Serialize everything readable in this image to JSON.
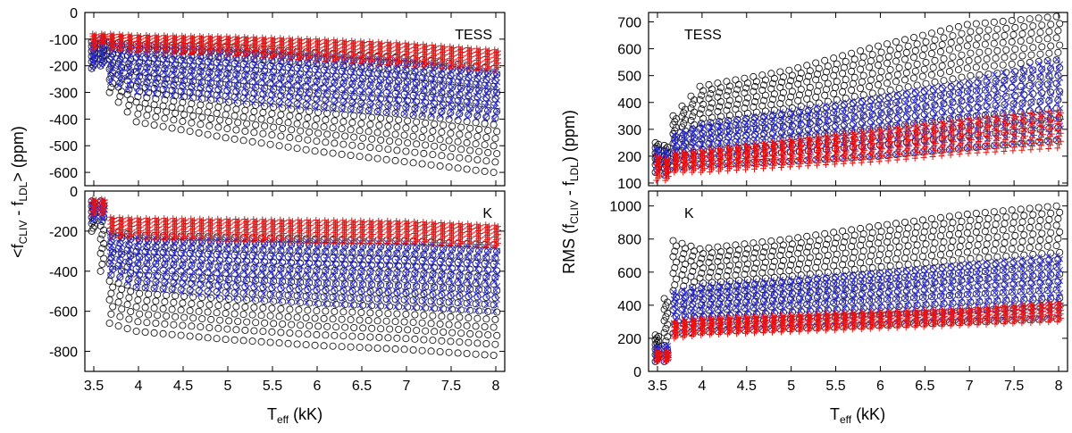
{
  "figure": {
    "left_ylabel": "<fCLIV - fLDL> (ppm)",
    "right_ylabel": "RMS (fCLIV - fLDL) (ppm)",
    "xlabel": "Teff (kK)"
  },
  "colors": {
    "black_series": "#000000",
    "blue_series": "#2b2bd8",
    "red_series": "#e81010"
  },
  "chart_data": [
    {
      "type": "scatter",
      "id": "left-top",
      "panel_label": "TESS",
      "x_range": [
        3.5,
        8.0
      ],
      "x_step_kK": 0.1,
      "xlim": [
        3.4,
        8.1
      ],
      "ylim": [
        -650,
        0
      ],
      "xticks": [
        3.5,
        4,
        4.5,
        5,
        5.5,
        6,
        6.5,
        7,
        7.5,
        8
      ],
      "xtick_labels": [
        "3.5",
        "4",
        "4.5",
        "5",
        "5.5",
        "6",
        "6.5",
        "7",
        "7.5",
        "8"
      ],
      "yticks": [
        0,
        -100,
        -200,
        -300,
        -400,
        -500,
        -600
      ],
      "ytick_labels": [
        "0",
        "-100",
        "-200",
        "-300",
        "-400",
        "-500",
        "-600"
      ],
      "show_xtick_labels": false,
      "series": [
        {
          "name": "black circles",
          "marker": "circle",
          "color": "#000000",
          "teff": [
            3.5,
            3.6,
            3.7,
            4.0,
            5.0,
            6.0,
            7.0,
            8.0
          ],
          "low": [
            -210,
            -200,
            -300,
            -410,
            -470,
            -520,
            -560,
            -600
          ],
          "high": [
            -110,
            -100,
            -110,
            -120,
            -130,
            -150,
            -170,
            -210
          ]
        },
        {
          "name": "blue crosses",
          "marker": "x",
          "color": "#2b2bd8",
          "teff": [
            3.5,
            3.6,
            3.7,
            4.0,
            5.0,
            6.0,
            7.0,
            8.0
          ],
          "low": [
            -210,
            -200,
            -260,
            -300,
            -330,
            -360,
            -380,
            -400
          ],
          "high": [
            -110,
            -100,
            -110,
            -120,
            -140,
            -160,
            -180,
            -220
          ]
        },
        {
          "name": "red pluses",
          "marker": "plus",
          "color": "#e81010",
          "teff": [
            3.5,
            3.6,
            3.7,
            4.0,
            5.0,
            6.0,
            7.0,
            8.0
          ],
          "low": [
            -140,
            -120,
            -140,
            -150,
            -160,
            -180,
            -200,
            -220
          ],
          "high": [
            -80,
            -80,
            -80,
            -85,
            -90,
            -100,
            -115,
            -140
          ]
        }
      ]
    },
    {
      "type": "scatter",
      "id": "left-bottom",
      "panel_label": "K",
      "x_range": [
        3.5,
        8.0
      ],
      "x_step_kK": 0.1,
      "xlim": [
        3.4,
        8.1
      ],
      "ylim": [
        -900,
        0
      ],
      "xticks": [
        3.5,
        4,
        4.5,
        5,
        5.5,
        6,
        6.5,
        7,
        7.5,
        8
      ],
      "xtick_labels": [
        "3.5",
        "4",
        "4.5",
        "5",
        "5.5",
        "6",
        "6.5",
        "7",
        "7.5",
        "8"
      ],
      "yticks": [
        0,
        -200,
        -400,
        -600,
        -800
      ],
      "ytick_labels": [
        "0",
        "-200",
        "-400",
        "-600",
        "-800"
      ],
      "show_xtick_labels": true,
      "series": [
        {
          "name": "black circles",
          "marker": "circle",
          "color": "#000000",
          "teff": [
            3.5,
            3.6,
            3.7,
            4.0,
            5.0,
            6.0,
            7.0,
            8.0
          ],
          "low": [
            -200,
            -400,
            -660,
            -700,
            -740,
            -770,
            -790,
            -820
          ],
          "high": [
            -50,
            -50,
            -200,
            -220,
            -230,
            -240,
            -250,
            -270
          ]
        },
        {
          "name": "blue crosses",
          "marker": "x",
          "color": "#2b2bd8",
          "teff": [
            3.5,
            3.6,
            3.7,
            4.0,
            5.0,
            6.0,
            7.0,
            8.0
          ],
          "low": [
            -150,
            -150,
            -420,
            -480,
            -530,
            -560,
            -580,
            -600
          ],
          "high": [
            -50,
            -50,
            -210,
            -230,
            -240,
            -250,
            -260,
            -280
          ]
        },
        {
          "name": "red pluses",
          "marker": "plus",
          "color": "#e81010",
          "teff": [
            3.5,
            3.6,
            3.7,
            4.0,
            5.0,
            6.0,
            7.0,
            8.0
          ],
          "low": [
            -120,
            -120,
            -230,
            -240,
            -250,
            -260,
            -260,
            -280
          ],
          "high": [
            -40,
            -40,
            -130,
            -135,
            -140,
            -145,
            -150,
            -170
          ]
        }
      ]
    },
    {
      "type": "scatter",
      "id": "right-top",
      "panel_label": "TESS",
      "x_range": [
        3.5,
        8.0
      ],
      "x_step_kK": 0.1,
      "xlim": [
        3.4,
        8.1
      ],
      "ylim": [
        90,
        735
      ],
      "xticks": [
        3.5,
        4,
        4.5,
        5,
        5.5,
        6,
        6.5,
        7,
        7.5,
        8
      ],
      "xtick_labels": [
        "3.5",
        "4",
        "4.5",
        "5",
        "5.5",
        "6",
        "6.5",
        "7",
        "7.5",
        "8"
      ],
      "yticks": [
        100,
        200,
        300,
        400,
        500,
        600,
        700
      ],
      "ytick_labels": [
        "100",
        "200",
        "300",
        "400",
        "500",
        "600",
        "700"
      ],
      "show_xtick_labels": false,
      "series": [
        {
          "name": "black circles",
          "marker": "circle",
          "color": "#000000",
          "teff": [
            3.5,
            3.6,
            3.7,
            4.0,
            5.0,
            6.0,
            7.0,
            8.0
          ],
          "low": [
            140,
            130,
            160,
            170,
            180,
            200,
            230,
            260
          ],
          "high": [
            250,
            240,
            350,
            460,
            520,
            610,
            690,
            720
          ]
        },
        {
          "name": "blue crosses",
          "marker": "x",
          "color": "#2b2bd8",
          "teff": [
            3.5,
            3.6,
            3.7,
            4.0,
            5.0,
            6.0,
            7.0,
            8.0
          ],
          "low": [
            140,
            130,
            150,
            160,
            180,
            200,
            230,
            260
          ],
          "high": [
            230,
            220,
            280,
            320,
            370,
            420,
            480,
            560
          ]
        },
        {
          "name": "red pluses",
          "marker": "plus",
          "color": "#e81010",
          "teff": [
            3.5,
            3.6,
            3.7,
            4.0,
            5.0,
            6.0,
            7.0,
            8.0
          ],
          "low": [
            110,
            110,
            140,
            140,
            160,
            180,
            210,
            230
          ],
          "high": [
            200,
            190,
            210,
            220,
            260,
            300,
            340,
            370
          ]
        }
      ]
    },
    {
      "type": "scatter",
      "id": "right-bottom",
      "panel_label": "K",
      "x_range": [
        3.5,
        8.0
      ],
      "x_step_kK": 0.1,
      "xlim": [
        3.4,
        8.1
      ],
      "ylim": [
        0,
        1090
      ],
      "xticks": [
        3.5,
        4,
        4.5,
        5,
        5.5,
        6,
        6.5,
        7,
        7.5,
        8
      ],
      "xtick_labels": [
        "3.5",
        "4",
        "4.5",
        "5",
        "5.5",
        "6",
        "6.5",
        "7",
        "7.5",
        "8"
      ],
      "yticks": [
        0,
        200,
        400,
        600,
        800,
        1000
      ],
      "ytick_labels": [
        "0",
        "200",
        "400",
        "600",
        "800",
        "1000"
      ],
      "show_xtick_labels": true,
      "series": [
        {
          "name": "black circles",
          "marker": "circle",
          "color": "#000000",
          "teff": [
            3.5,
            3.6,
            3.7,
            4.0,
            5.0,
            6.0,
            7.0,
            8.0
          ],
          "low": [
            60,
            60,
            230,
            240,
            260,
            280,
            300,
            320
          ],
          "high": [
            220,
            440,
            790,
            740,
            800,
            880,
            950,
            1000
          ]
        },
        {
          "name": "blue crosses",
          "marker": "x",
          "color": "#2b2bd8",
          "teff": [
            3.5,
            3.6,
            3.7,
            4.0,
            5.0,
            6.0,
            7.0,
            8.0
          ],
          "low": [
            60,
            60,
            230,
            250,
            270,
            290,
            310,
            330
          ],
          "high": [
            150,
            160,
            480,
            520,
            560,
            600,
            650,
            700
          ]
        },
        {
          "name": "red pluses",
          "marker": "plus",
          "color": "#e81010",
          "teff": [
            3.5,
            3.6,
            3.7,
            4.0,
            5.0,
            6.0,
            7.0,
            8.0
          ],
          "low": [
            60,
            60,
            200,
            220,
            240,
            260,
            280,
            300
          ],
          "high": [
            120,
            120,
            300,
            320,
            340,
            360,
            380,
            420
          ]
        }
      ]
    }
  ]
}
